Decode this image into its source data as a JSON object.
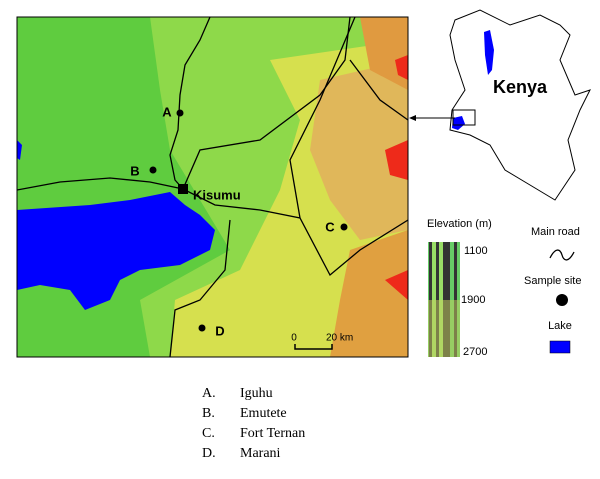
{
  "map": {
    "sites": [
      {
        "letter": "A"
      },
      {
        "letter": "B"
      },
      {
        "letter": "C"
      },
      {
        "letter": "D"
      }
    ],
    "city": "Kisumu",
    "scale": {
      "start": "0",
      "end": "20 km"
    }
  },
  "inset": {
    "country": "Kenya"
  },
  "legend": {
    "elevation_title": "Elevation (m)",
    "elevation_ticks": [
      1100,
      1900,
      2700
    ],
    "road": "Main road",
    "site": "Sample site",
    "lake": "Lake"
  },
  "sites_list": [
    {
      "marker": "A.",
      "name": "Iguhu"
    },
    {
      "marker": "B.",
      "name": "Emutete"
    },
    {
      "marker": "C.",
      "name": "Fort Ternan"
    },
    {
      "marker": "D.",
      "name": "Marani"
    }
  ]
}
